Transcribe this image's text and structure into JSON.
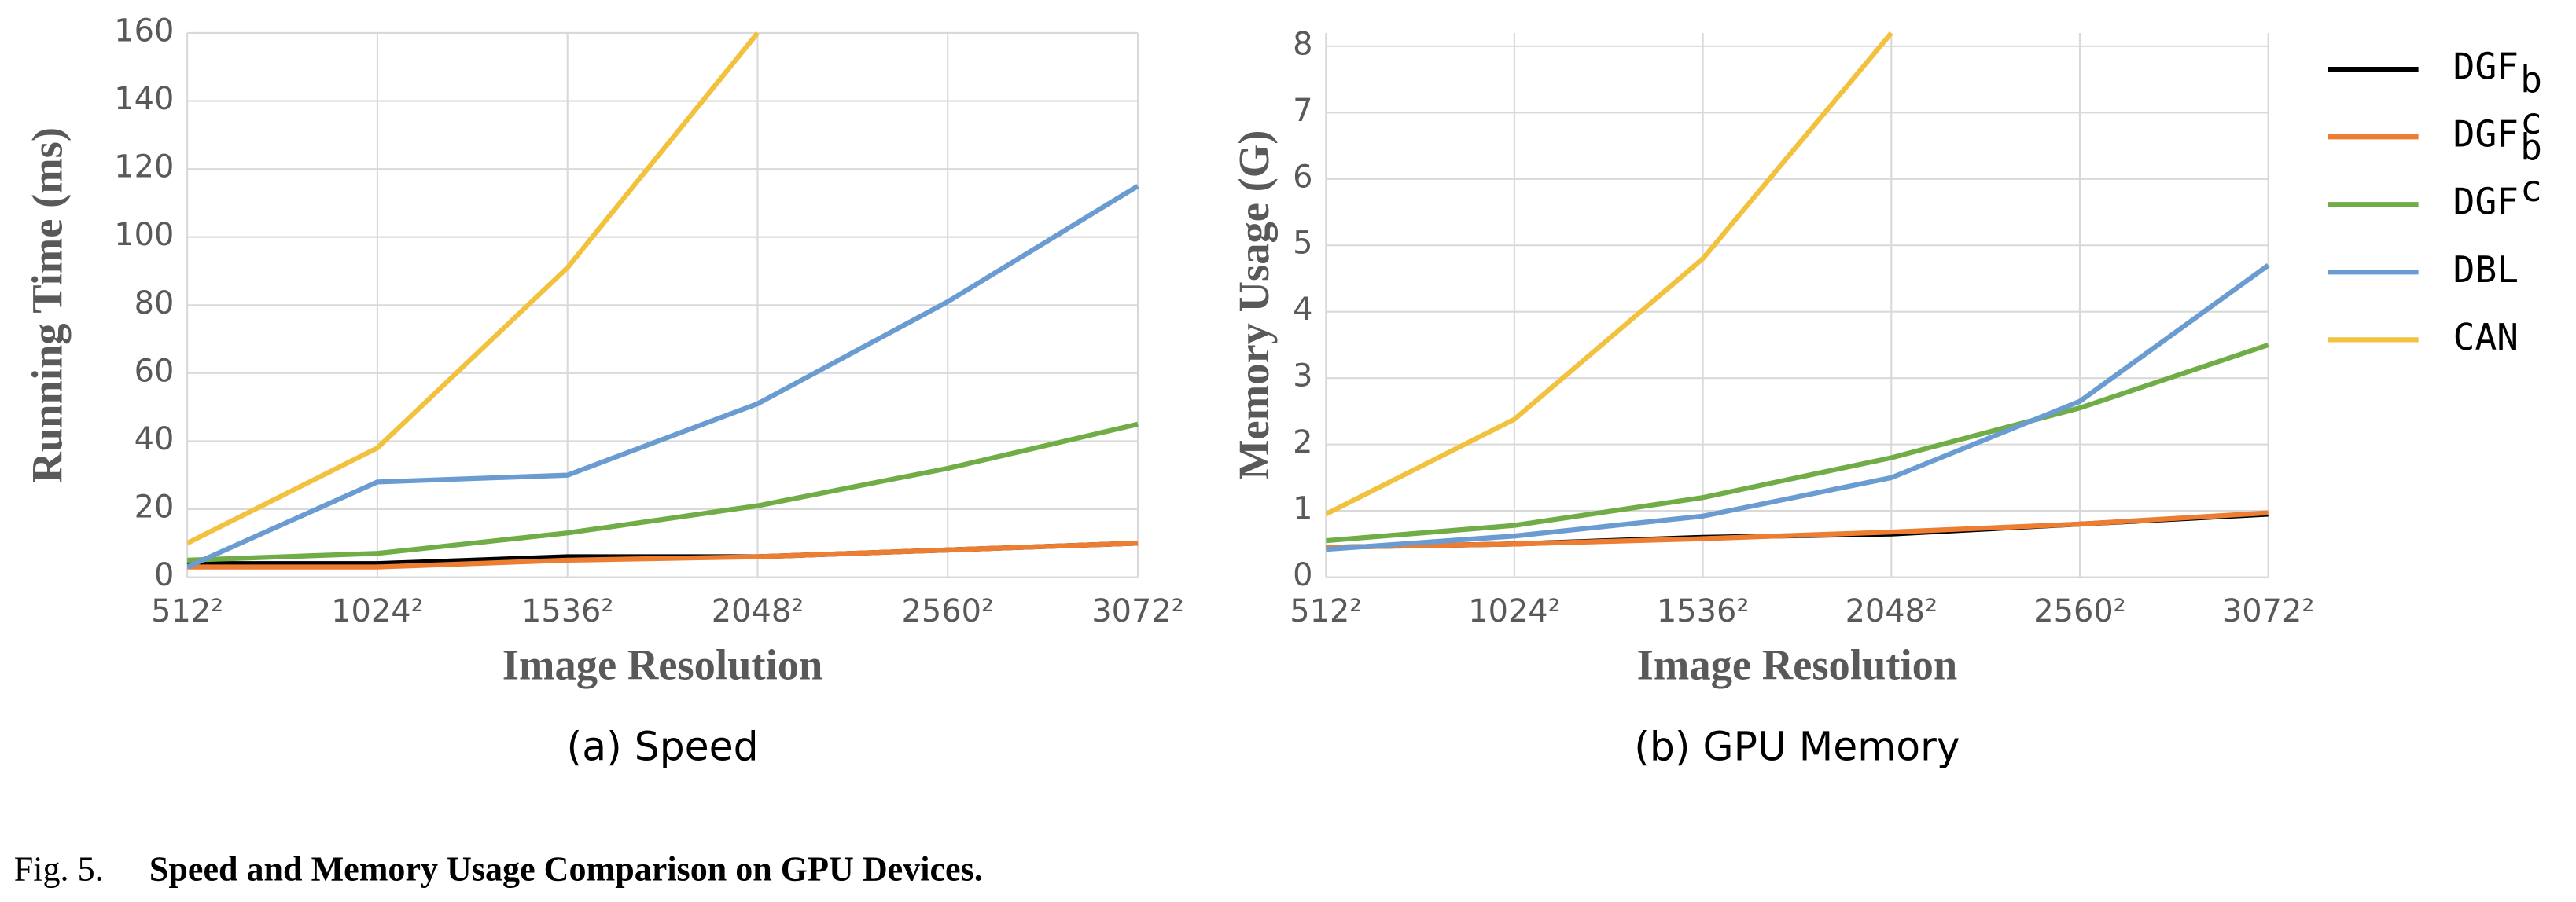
{
  "chart_data": [
    {
      "type": "line",
      "x_label": "Image Resolution",
      "y_label": "Running Time (ms)",
      "subtitle": "(a) Speed",
      "categories": [
        "512²",
        "1024²",
        "1536²",
        "2048²",
        "2560²",
        "3072²"
      ],
      "ylim": [
        0,
        160
      ],
      "yticks": [
        0,
        20,
        40,
        60,
        80,
        100,
        120,
        140,
        160
      ],
      "grid": true,
      "series": [
        {
          "name": "DGF",
          "sub": "b",
          "color": "#000000",
          "values": [
            4,
            4,
            6,
            6,
            8,
            10
          ]
        },
        {
          "name": "DGF",
          "sub": "b",
          "sup": "c",
          "color": "#ed7d31",
          "values": [
            3,
            3,
            5,
            6,
            8,
            10
          ]
        },
        {
          "name": "DGF",
          "sup": "c",
          "color": "#70ad47",
          "values": [
            5,
            7,
            13,
            21,
            32,
            45
          ]
        },
        {
          "name": "DBL",
          "color": "#6a9bd1",
          "values": [
            3,
            28,
            30,
            51,
            81,
            115
          ]
        },
        {
          "name": "CAN",
          "color": "#f2c13e",
          "values": [
            10,
            38,
            91,
            160,
            null,
            null
          ]
        }
      ]
    },
    {
      "type": "line",
      "x_label": "Image Resolution",
      "y_label": "Memory Usage (G)",
      "subtitle": "(b) GPU Memory",
      "categories": [
        "512²",
        "1024²",
        "1536²",
        "2048²",
        "2560²",
        "3072²"
      ],
      "ylim": [
        0,
        8.2
      ],
      "yticks": [
        0,
        1,
        2,
        3,
        4,
        5,
        6,
        7,
        8
      ],
      "grid": true,
      "series": [
        {
          "color": "#000000",
          "values": [
            0.45,
            0.5,
            0.6,
            0.65,
            0.8,
            0.95
          ]
        },
        {
          "color": "#ed7d31",
          "values": [
            0.45,
            0.5,
            0.58,
            0.68,
            0.8,
            0.97
          ]
        },
        {
          "color": "#70ad47",
          "values": [
            0.55,
            0.78,
            1.2,
            1.8,
            2.55,
            3.5
          ]
        },
        {
          "color": "#6a9bd1",
          "values": [
            0.42,
            0.62,
            0.92,
            1.5,
            2.65,
            4.7
          ]
        },
        {
          "color": "#f2c13e",
          "values": [
            0.95,
            2.38,
            4.8,
            8.2,
            null,
            null
          ]
        }
      ]
    }
  ],
  "caption": {
    "label": "Fig. 5.",
    "text": "Speed and Memory Usage Comparison on GPU Devices."
  }
}
